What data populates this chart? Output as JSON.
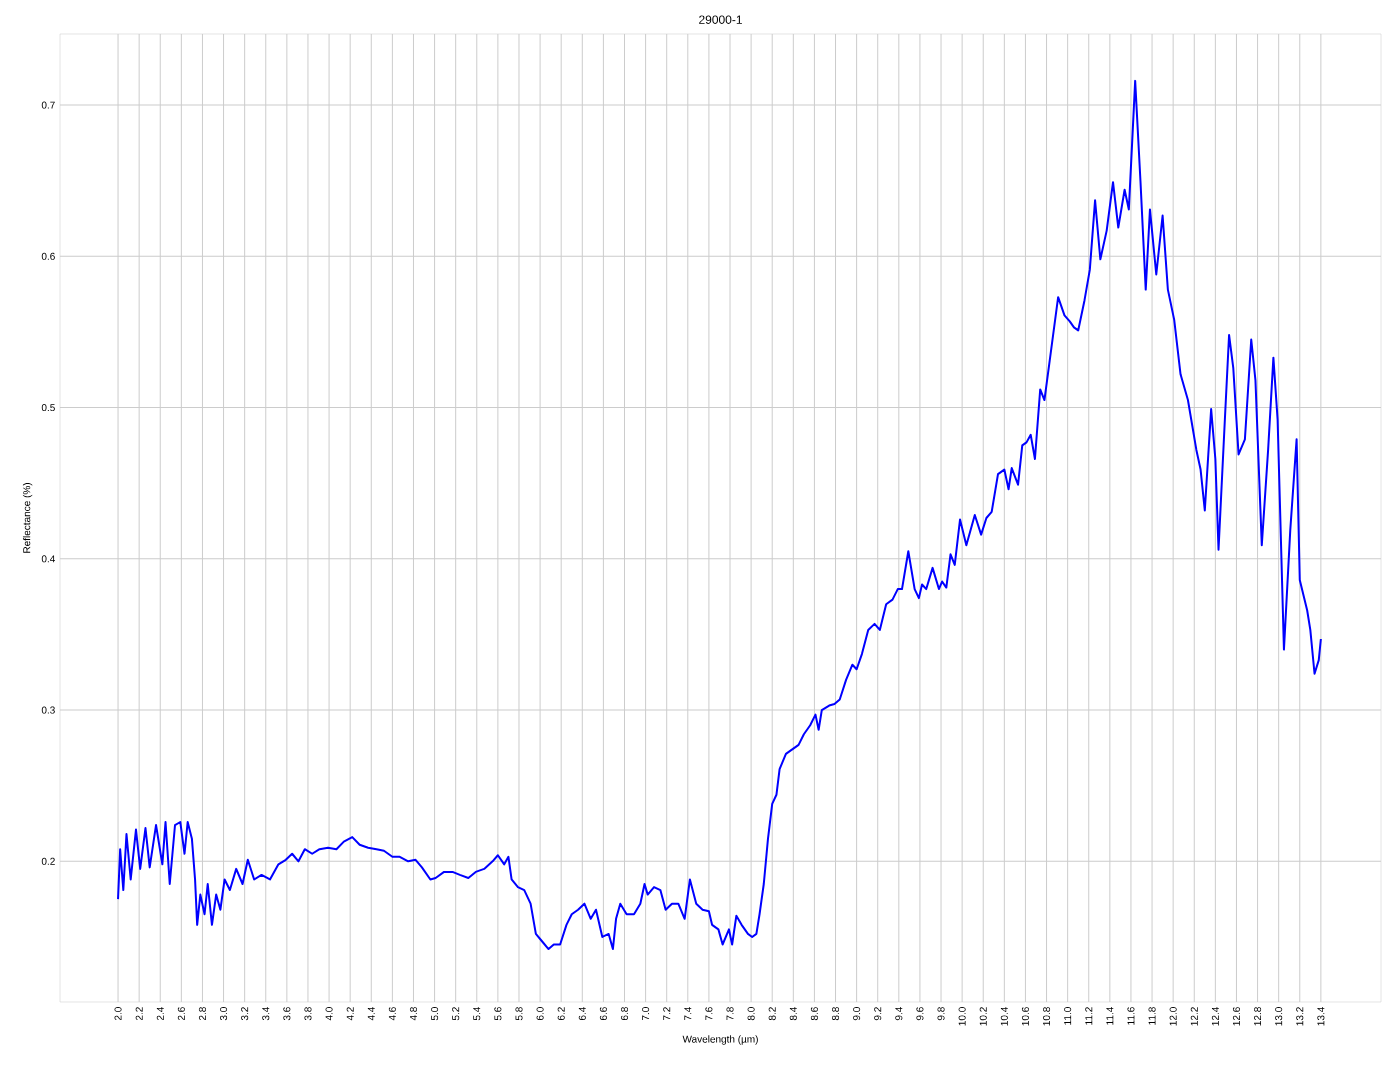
{
  "chart_data": {
    "type": "line",
    "title": "29000-1",
    "xlabel": "Wavelength (µm)",
    "ylabel": "Reflectance (%)",
    "x": [
      2.0,
      2.02,
      2.05,
      2.08,
      2.12,
      2.17,
      2.21,
      2.26,
      2.3,
      2.36,
      2.42,
      2.45,
      2.49,
      2.54,
      2.59,
      2.63,
      2.66,
      2.7,
      2.73,
      2.75,
      2.78,
      2.82,
      2.85,
      2.89,
      2.93,
      2.97,
      3.01,
      3.06,
      3.12,
      3.18,
      3.23,
      3.29,
      3.36,
      3.44,
      3.52,
      3.59,
      3.65,
      3.71,
      3.77,
      3.84,
      3.91,
      3.99,
      4.07,
      4.14,
      4.22,
      4.29,
      4.37,
      4.45,
      4.52,
      4.6,
      4.67,
      4.75,
      4.82,
      4.88,
      4.96,
      5.01,
      5.09,
      5.17,
      5.24,
      5.32,
      5.39,
      5.47,
      5.55,
      5.6,
      5.66,
      5.7,
      5.73,
      5.79,
      5.85,
      5.91,
      5.96,
      6.02,
      6.08,
      6.13,
      6.19,
      6.25,
      6.3,
      6.36,
      6.42,
      6.48,
      6.53,
      6.59,
      6.65,
      6.69,
      6.72,
      6.76,
      6.82,
      6.89,
      6.95,
      6.99,
      7.02,
      7.08,
      7.14,
      7.19,
      7.25,
      7.31,
      7.37,
      7.42,
      7.48,
      7.54,
      7.6,
      7.63,
      7.69,
      7.73,
      7.79,
      7.82,
      7.86,
      7.91,
      7.97,
      8.01,
      8.05,
      8.08,
      8.12,
      8.16,
      8.2,
      8.24,
      8.27,
      8.33,
      8.39,
      8.45,
      8.5,
      8.56,
      8.61,
      8.64,
      8.67,
      8.74,
      8.79,
      8.84,
      8.9,
      8.96,
      9.0,
      9.05,
      9.11,
      9.17,
      9.22,
      9.28,
      9.34,
      9.39,
      9.43,
      9.49,
      9.55,
      9.59,
      9.62,
      9.66,
      9.72,
      9.78,
      9.81,
      9.85,
      9.89,
      9.93,
      9.98,
      10.04,
      10.12,
      10.18,
      10.23,
      10.28,
      10.34,
      10.4,
      10.44,
      10.47,
      10.53,
      10.57,
      10.61,
      10.65,
      10.69,
      10.74,
      10.78,
      10.83,
      10.91,
      10.97,
      11.02,
      11.06,
      11.1,
      11.16,
      11.21,
      11.26,
      11.31,
      11.37,
      11.43,
      11.48,
      11.54,
      11.58,
      11.64,
      11.69,
      11.74,
      11.78,
      11.84,
      11.9,
      11.95,
      12.01,
      12.07,
      12.14,
      12.22,
      12.26,
      12.3,
      12.36,
      12.4,
      12.43,
      12.49,
      12.53,
      12.57,
      12.62,
      12.68,
      12.74,
      12.78,
      12.84,
      12.9,
      12.95,
      12.99,
      13.05,
      13.11,
      13.17,
      13.2,
      13.27,
      13.3,
      13.34,
      13.38,
      13.4
    ],
    "series": [
      {
        "color": "#0000ff",
        "values": [
          0.175,
          0.208,
          0.181,
          0.218,
          0.188,
          0.221,
          0.195,
          0.222,
          0.196,
          0.224,
          0.198,
          0.226,
          0.185,
          0.224,
          0.226,
          0.205,
          0.226,
          0.215,
          0.188,
          0.158,
          0.178,
          0.165,
          0.185,
          0.158,
          0.178,
          0.168,
          0.188,
          0.181,
          0.195,
          0.185,
          0.201,
          0.188,
          0.191,
          0.188,
          0.198,
          0.201,
          0.205,
          0.2,
          0.208,
          0.205,
          0.208,
          0.209,
          0.208,
          0.213,
          0.216,
          0.211,
          0.209,
          0.208,
          0.207,
          0.203,
          0.203,
          0.2,
          0.201,
          0.196,
          0.188,
          0.189,
          0.193,
          0.193,
          0.191,
          0.189,
          0.193,
          0.195,
          0.2,
          0.204,
          0.198,
          0.203,
          0.188,
          0.183,
          0.181,
          0.172,
          0.152,
          0.147,
          0.142,
          0.145,
          0.145,
          0.158,
          0.165,
          0.168,
          0.172,
          0.162,
          0.168,
          0.15,
          0.152,
          0.142,
          0.162,
          0.172,
          0.165,
          0.165,
          0.172,
          0.185,
          0.178,
          0.183,
          0.181,
          0.168,
          0.172,
          0.172,
          0.162,
          0.188,
          0.172,
          0.168,
          0.167,
          0.158,
          0.155,
          0.145,
          0.155,
          0.145,
          0.164,
          0.158,
          0.152,
          0.15,
          0.152,
          0.165,
          0.185,
          0.215,
          0.238,
          0.244,
          0.261,
          0.271,
          0.274,
          0.277,
          0.284,
          0.29,
          0.297,
          0.287,
          0.3,
          0.303,
          0.304,
          0.307,
          0.32,
          0.33,
          0.327,
          0.337,
          0.353,
          0.357,
          0.353,
          0.37,
          0.373,
          0.38,
          0.38,
          0.405,
          0.38,
          0.374,
          0.383,
          0.38,
          0.394,
          0.38,
          0.385,
          0.381,
          0.403,
          0.396,
          0.426,
          0.409,
          0.429,
          0.416,
          0.427,
          0.431,
          0.456,
          0.459,
          0.446,
          0.46,
          0.449,
          0.475,
          0.477,
          0.482,
          0.466,
          0.512,
          0.505,
          0.531,
          0.573,
          0.561,
          0.557,
          0.553,
          0.551,
          0.571,
          0.591,
          0.637,
          0.598,
          0.617,
          0.649,
          0.619,
          0.644,
          0.631,
          0.716,
          0.65,
          0.578,
          0.631,
          0.588,
          0.627,
          0.578,
          0.558,
          0.522,
          0.505,
          0.472,
          0.459,
          0.432,
          0.499,
          0.466,
          0.406,
          0.492,
          0.548,
          0.526,
          0.469,
          0.479,
          0.545,
          0.518,
          0.409,
          0.472,
          0.533,
          0.492,
          0.34,
          0.419,
          0.479,
          0.386,
          0.366,
          0.353,
          0.324,
          0.333,
          0.347
        ]
      }
    ],
    "xlim": [
      1.45,
      13.97
    ],
    "ylim": [
      0.107,
      0.747
    ],
    "xticks": [
      {
        "value": 2,
        "label": "2.0"
      },
      2.2,
      2.4,
      2.6,
      2.8,
      {
        "value": 3,
        "label": "3.0"
      },
      3.2,
      3.4,
      3.6,
      3.8,
      {
        "value": 4,
        "label": "4.0"
      },
      4.2,
      4.4,
      4.6,
      4.8,
      {
        "value": 5,
        "label": "5.0"
      },
      5.2,
      5.4,
      5.6,
      5.8,
      {
        "value": 6,
        "label": "6.0"
      },
      6.2,
      6.4,
      6.6,
      6.8,
      {
        "value": 7,
        "label": "7.0"
      },
      7.2,
      7.4,
      7.6,
      7.8,
      {
        "value": 8,
        "label": "8.0"
      },
      8.2,
      8.4,
      8.6,
      8.8,
      {
        "value": 9,
        "label": "9.0"
      },
      9.2,
      9.4,
      9.6,
      9.8,
      {
        "value": 10,
        "label": "10.0"
      },
      10.2,
      10.4,
      10.6,
      10.8,
      {
        "value": 11,
        "label": "11.0"
      },
      11.2,
      11.4,
      11.6,
      11.8,
      {
        "value": 12,
        "label": "12.0"
      },
      12.2,
      12.4,
      12.6,
      12.8,
      {
        "value": 13,
        "label": "13.0"
      },
      13.2,
      13.4
    ],
    "yticks": [
      0.2,
      0.3,
      0.4,
      0.5,
      0.6,
      0.7
    ],
    "grid": true
  }
}
